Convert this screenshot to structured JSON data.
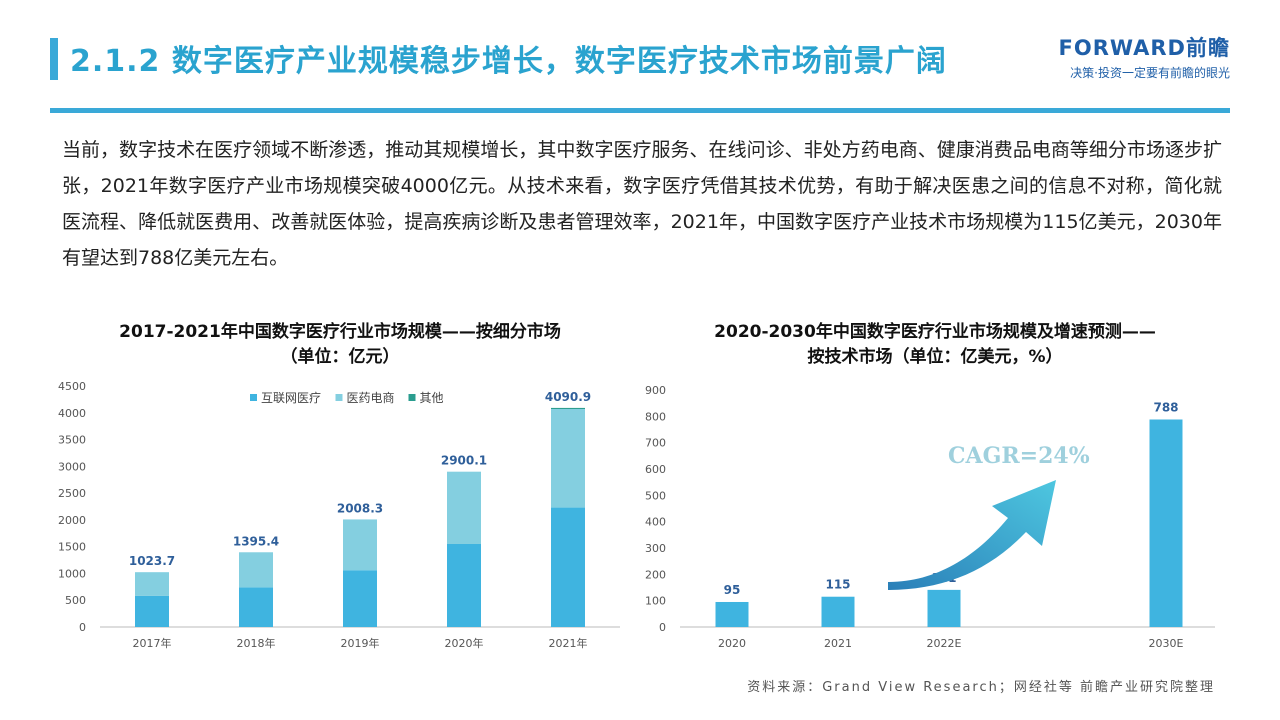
{
  "header": {
    "title": "2.1.2 数字医疗产业规模稳步增长，数字医疗技术市场前景广阔",
    "brand_logo": "FORWARD前瞻",
    "brand_slogan": "决策·投资一定要有前瞻的眼光"
  },
  "intro_text": "当前，数字技术在医疗领域不断渗透，推动其规模增长，其中数字医疗服务、在线问诊、非处方药电商、健康消费品电商等细分市场逐步扩张，2021年数字医疗产业市场规模突破4000亿元。从技术来看，数字医疗凭借其技术优势，有助于解决医患之间的信息不对称，简化就医流程、降低就医费用、改善就医体验，提高疾病诊断及患者管理效率，2021年，中国数字医疗产业技术市场规模为115亿美元，2030年有望达到788亿美元左右。",
  "chart_data": [
    {
      "type": "bar",
      "stacked": true,
      "title": "2017-2021年中国数字医疗行业市场规模——按细分市场",
      "subtitle": "（单位：亿元）",
      "categories": [
        "2017年",
        "2018年",
        "2019年",
        "2020年",
        "2021年"
      ],
      "series": [
        {
          "name": "互联网医疗",
          "color": "#3fb4e0",
          "values": [
            580,
            740,
            1060,
            1550,
            2230
          ]
        },
        {
          "name": "医药电商",
          "color": "#84cfe0",
          "values": [
            443.7,
            655.4,
            948.3,
            1350.1,
            1840.9
          ]
        },
        {
          "name": "其他",
          "color": "#2a9d8f",
          "values": [
            0,
            0,
            0,
            0,
            20
          ]
        }
      ],
      "totals": [
        "1023.7",
        "1395.4",
        "2008.3",
        "2900.1",
        "4090.9"
      ],
      "ylim": [
        0,
        4500
      ],
      "yticks": [
        0,
        500,
        1000,
        1500,
        2000,
        2500,
        3000,
        3500,
        4000,
        4500
      ],
      "legend_position": "top",
      "grid": false
    },
    {
      "type": "bar",
      "title": "2020-2030年中国数字医疗行业市场规模及增速预测——",
      "subtitle": "按技术市场（单位：亿美元，%）",
      "categories": [
        "2020",
        "2021",
        "2022E",
        "2030E"
      ],
      "values": [
        95,
        115,
        141,
        788
      ],
      "value_labels": [
        "95",
        "115",
        "141",
        "788"
      ],
      "color": "#3fb4e0",
      "ylim": [
        0,
        900
      ],
      "yticks": [
        0,
        100,
        200,
        300,
        400,
        500,
        600,
        700,
        800,
        900
      ],
      "annotation": "CAGR=24%",
      "grid": false
    }
  ],
  "source_text": "资料来源：Grand View Research；网经社等 前瞻产业研究院整理"
}
